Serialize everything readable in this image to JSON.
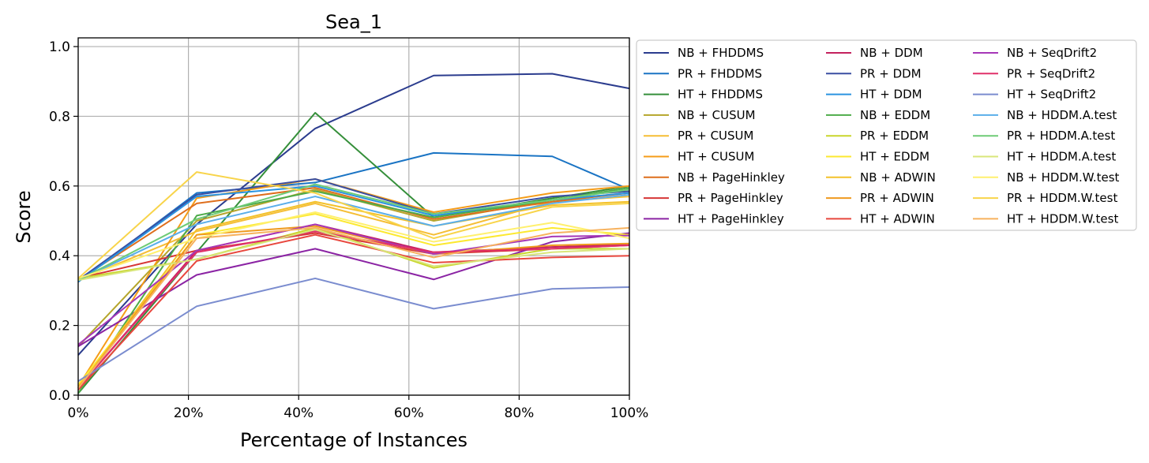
{
  "chart_data": {
    "type": "line",
    "title": "Sea_1",
    "xlabel": "Percentage of Instances",
    "ylabel": "Score",
    "x": [
      0,
      21.5,
      43,
      64.5,
      86,
      100
    ],
    "xlim": [
      0,
      100
    ],
    "ylim": [
      0,
      1.025
    ],
    "x_ticks": [
      "0%",
      "20%",
      "40%",
      "60%",
      "80%",
      "100%"
    ],
    "y_ticks": [
      "0.0",
      "0.2",
      "0.4",
      "0.6",
      "0.8",
      "1.0"
    ],
    "grid": true,
    "legend_placement": "outside upper right, 3 columns",
    "series": [
      {
        "name": "NB + FHDDMS",
        "color": "#2b3c8e",
        "values": [
          0.115,
          0.49,
          0.765,
          0.917,
          0.922,
          0.88
        ]
      },
      {
        "name": "PR + FHDDMS",
        "color": "#1a74c4",
        "values": [
          0.325,
          0.58,
          0.61,
          0.695,
          0.685,
          0.59
        ]
      },
      {
        "name": "HT + FHDDMS",
        "color": "#358f3a",
        "values": [
          0.005,
          0.41,
          0.81,
          0.51,
          0.565,
          0.6
        ]
      },
      {
        "name": "NB + CUSUM",
        "color": "#b5a52a",
        "values": [
          0.14,
          0.5,
          0.59,
          0.5,
          0.56,
          0.58
        ]
      },
      {
        "name": "PR + CUSUM",
        "color": "#f5be35",
        "values": [
          0.33,
          0.47,
          0.55,
          0.46,
          0.555,
          0.57
        ]
      },
      {
        "name": "HT + CUSUM",
        "color": "#f59c18",
        "values": [
          0.025,
          0.565,
          0.62,
          0.525,
          0.58,
          0.6
        ]
      },
      {
        "name": "NB + PageHinkley",
        "color": "#de6e1c",
        "values": [
          0.33,
          0.55,
          0.595,
          0.505,
          0.555,
          0.58
        ]
      },
      {
        "name": "PR + PageHinkley",
        "color": "#d63636",
        "values": [
          0.335,
          0.415,
          0.465,
          0.405,
          0.42,
          0.43
        ]
      },
      {
        "name": "HT + PageHinkley",
        "color": "#8b24a4",
        "values": [
          0.14,
          0.345,
          0.42,
          0.332,
          0.44,
          0.465
        ]
      },
      {
        "name": "NB + DDM",
        "color": "#c4215e",
        "values": [
          0.02,
          0.415,
          0.49,
          0.41,
          0.425,
          0.432
        ]
      },
      {
        "name": "PR + DDM",
        "color": "#3a4fa2",
        "values": [
          0.33,
          0.575,
          0.62,
          0.52,
          0.57,
          0.585
        ]
      },
      {
        "name": "HT + DDM",
        "color": "#2a93e0",
        "values": [
          0.325,
          0.57,
          0.6,
          0.515,
          0.56,
          0.58
        ]
      },
      {
        "name": "NB + EDDM",
        "color": "#4eab4a",
        "values": [
          0.005,
          0.515,
          0.585,
          0.51,
          0.56,
          0.595
        ]
      },
      {
        "name": "PR + EDDM",
        "color": "#c9d62c",
        "values": [
          0.335,
          0.39,
          0.48,
          0.365,
          0.42,
          0.42
        ]
      },
      {
        "name": "HT + EDDM",
        "color": "#fce930",
        "values": [
          0.03,
          0.46,
          0.52,
          0.43,
          0.48,
          0.46
        ]
      },
      {
        "name": "NB + ADWIN",
        "color": "#f3c12a",
        "values": [
          0.02,
          0.475,
          0.555,
          0.485,
          0.545,
          0.555
        ]
      },
      {
        "name": "PR + ADWIN",
        "color": "#ef9a1e",
        "values": [
          0.02,
          0.46,
          0.485,
          0.405,
          0.43,
          0.435
        ]
      },
      {
        "name": "HT + ADWIN",
        "color": "#e8473e",
        "values": [
          0.015,
          0.385,
          0.46,
          0.38,
          0.395,
          0.4
        ]
      },
      {
        "name": "NB + SeqDrift2",
        "color": "#a637b8",
        "values": [
          0.145,
          0.415,
          0.49,
          0.405,
          0.455,
          0.458
        ]
      },
      {
        "name": "PR + SeqDrift2",
        "color": "#e0306a",
        "values": [
          0.02,
          0.41,
          0.47,
          0.41,
          0.42,
          0.43
        ]
      },
      {
        "name": "HT + SeqDrift2",
        "color": "#7a8ccf",
        "values": [
          0.04,
          0.255,
          0.335,
          0.248,
          0.305,
          0.31
        ]
      },
      {
        "name": "NB + HDDM.A.test",
        "color": "#5aaeea",
        "values": [
          0.33,
          0.49,
          0.57,
          0.485,
          0.55,
          0.575
        ]
      },
      {
        "name": "PR + HDDM.A.test",
        "color": "#6ecb76",
        "values": [
          0.33,
          0.505,
          0.605,
          0.52,
          0.56,
          0.59
        ]
      },
      {
        "name": "HT + HDDM.A.test",
        "color": "#d8e67a",
        "values": [
          0.33,
          0.39,
          0.475,
          0.37,
          0.41,
          0.42
        ]
      },
      {
        "name": "NB + HDDM.W.test",
        "color": "#fff06e",
        "values": [
          0.335,
          0.45,
          0.525,
          0.44,
          0.495,
          0.45
        ]
      },
      {
        "name": "PR + HDDM.W.test",
        "color": "#f8d44a",
        "values": [
          0.335,
          0.64,
          0.58,
          0.45,
          0.54,
          0.55
        ]
      },
      {
        "name": "HT + HDDM.W.test",
        "color": "#f7b25e",
        "values": [
          0.02,
          0.45,
          0.48,
          0.395,
          0.465,
          0.48
        ]
      }
    ]
  }
}
